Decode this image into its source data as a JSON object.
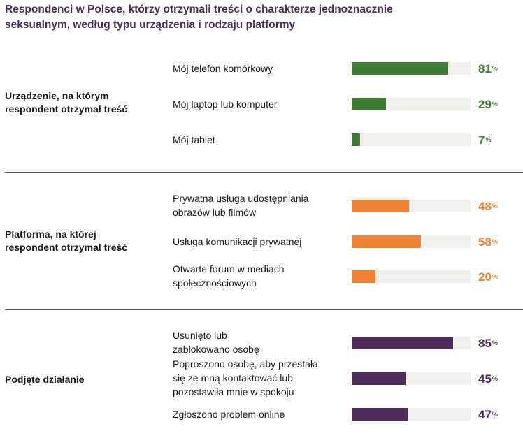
{
  "title_lines": [
    "Respondenci w Polsce, którzy otrzymali treści o charakterze jednoznacznie",
    "seksualnym, według typu urządzenia i rodzaju platformy"
  ],
  "colors": {
    "title": "#4f2d5a",
    "device": "#3f7b35",
    "platform": "#ef8233",
    "action": "#4f2d5a",
    "track": "#f1f0ec"
  },
  "chart_data": {
    "type": "bar",
    "orientation": "horizontal",
    "unit": "%",
    "xlim": [
      0,
      100
    ],
    "groups": [
      {
        "label_lines": [
          "Urządzenie, na którym",
          "respondent otrzymał treść"
        ],
        "color": "#3f7b35",
        "items": [
          {
            "label_lines": [
              "Mój telefon komórkowy"
            ],
            "value": 81,
            "value_text": "81"
          },
          {
            "label_lines": [
              "Mój laptop lub komputer"
            ],
            "value": 29,
            "value_text": "29"
          },
          {
            "label_lines": [
              "Mój tablet"
            ],
            "value": 7,
            "value_text": "7"
          }
        ]
      },
      {
        "label_lines": [
          "Platforma, na której",
          "respondent otrzymał treść"
        ],
        "color": "#ef8233",
        "items": [
          {
            "label_lines": [
              "Prywatna usługa udostępniania",
              "obrazów lub filmów"
            ],
            "value": 48,
            "value_text": "48"
          },
          {
            "label_lines": [
              "Usługa komunikacji prywatnej"
            ],
            "value": 58,
            "value_text": "58"
          },
          {
            "label_lines": [
              "Otwarte forum w mediach",
              "społecznościowych"
            ],
            "value": 20,
            "value_text": "20"
          }
        ]
      },
      {
        "label_lines": [
          "Podjęte działanie"
        ],
        "color": "#4f2d5a",
        "items": [
          {
            "label_lines": [
              "Usunięto lub",
              "zablokowano osobę"
            ],
            "value": 85,
            "value_text": "85"
          },
          {
            "label_lines": [
              "Poproszono osobę, aby przestała",
              "się ze mną kontaktować lub",
              "pozostawiła mnie w spokoju"
            ],
            "value": 45,
            "value_text": "45"
          },
          {
            "label_lines": [
              "Zgłoszono problem online"
            ],
            "value": 47,
            "value_text": "47"
          }
        ]
      }
    ]
  }
}
